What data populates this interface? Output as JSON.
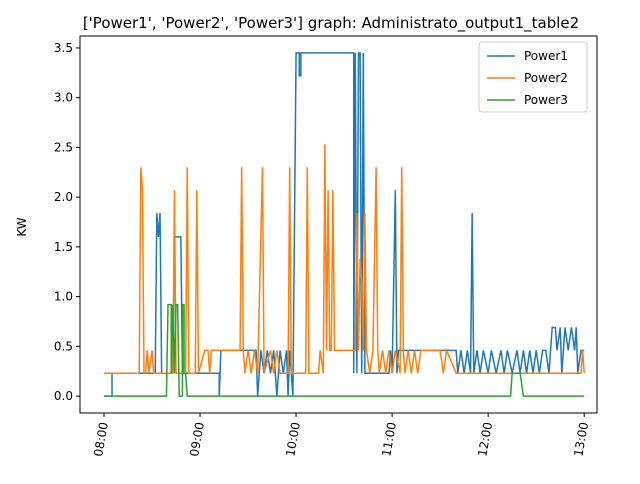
{
  "chart_data": {
    "type": "line",
    "title": "['Power1', 'Power2', 'Power3'] graph: Administrato_output1_table2",
    "xlabel": "",
    "ylabel": "KW",
    "xlim": [
      "07:45",
      "13:08"
    ],
    "ylim": [
      -0.17,
      3.62
    ],
    "x_ticks": [
      "08:00",
      "09:00",
      "10:00",
      "11:00",
      "12:00",
      "13:00"
    ],
    "y_ticks": [
      "0.0",
      "0.5",
      "1.0",
      "1.5",
      "2.0",
      "2.5",
      "3.0",
      "3.5"
    ],
    "grid": false,
    "legend_position": "top-right",
    "series": [
      {
        "name": "Power1",
        "color": "#1f77b4",
        "points": [
          [
            "08:00",
            0.0
          ],
          [
            "08:05",
            0.0
          ],
          [
            "08:05",
            0.23
          ],
          [
            "08:32",
            0.23
          ],
          [
            "08:33",
            1.84
          ],
          [
            "08:34",
            1.6
          ],
          [
            "08:35",
            1.84
          ],
          [
            "08:36",
            0.23
          ],
          [
            "08:43",
            0.23
          ],
          [
            "08:44",
            1.6
          ],
          [
            "08:48",
            1.6
          ],
          [
            "08:49",
            0.23
          ],
          [
            "09:12",
            0.23
          ],
          [
            "09:12",
            0.0
          ],
          [
            "09:13",
            0.46
          ],
          [
            "09:35",
            0.46
          ],
          [
            "09:36",
            0.0
          ],
          [
            "09:38",
            0.46
          ],
          [
            "09:40",
            0.23
          ],
          [
            "09:42",
            0.46
          ],
          [
            "09:44",
            0.23
          ],
          [
            "09:46",
            0.46
          ],
          [
            "09:48",
            0.0
          ],
          [
            "09:50",
            0.46
          ],
          [
            "09:52",
            0.23
          ],
          [
            "09:54",
            0.46
          ],
          [
            "09:55",
            0.0
          ],
          [
            "09:56",
            0.46
          ],
          [
            "09:58",
            0.0
          ],
          [
            "10:00",
            3.45
          ],
          [
            "10:02",
            3.45
          ],
          [
            "10:02",
            3.22
          ],
          [
            "10:03",
            3.22
          ],
          [
            "10:03",
            3.45
          ],
          [
            "10:36",
            3.45
          ],
          [
            "10:36",
            0.23
          ],
          [
            "10:37",
            3.45
          ],
          [
            "10:38",
            0.23
          ],
          [
            "10:39",
            3.45
          ],
          [
            "10:40",
            3.45
          ],
          [
            "10:41",
            0.23
          ],
          [
            "10:42",
            3.45
          ],
          [
            "10:43",
            0.23
          ],
          [
            "10:58",
            0.23
          ],
          [
            "10:59",
            0.46
          ],
          [
            "11:00",
            0.23
          ],
          [
            "11:02",
            2.07
          ],
          [
            "11:03",
            0.23
          ],
          [
            "11:04",
            0.46
          ],
          [
            "11:40",
            0.46
          ],
          [
            "11:41",
            0.23
          ],
          [
            "11:43",
            0.46
          ],
          [
            "11:45",
            0.23
          ],
          [
            "11:47",
            0.46
          ],
          [
            "11:49",
            0.23
          ],
          [
            "11:50",
            1.84
          ],
          [
            "11:51",
            0.23
          ],
          [
            "11:53",
            0.46
          ],
          [
            "11:55",
            0.23
          ],
          [
            "11:57",
            0.46
          ],
          [
            "12:00",
            0.23
          ],
          [
            "12:02",
            0.46
          ],
          [
            "12:05",
            0.23
          ],
          [
            "12:08",
            0.46
          ],
          [
            "12:10",
            0.23
          ],
          [
            "12:12",
            0.46
          ],
          [
            "12:15",
            0.23
          ],
          [
            "12:18",
            0.46
          ],
          [
            "12:20",
            0.23
          ],
          [
            "12:22",
            0.46
          ],
          [
            "12:24",
            0.23
          ],
          [
            "12:26",
            0.46
          ],
          [
            "12:28",
            0.23
          ],
          [
            "12:30",
            0.46
          ],
          [
            "12:32",
            0.23
          ],
          [
            "12:34",
            0.46
          ],
          [
            "12:36",
            0.46
          ],
          [
            "12:38",
            0.23
          ],
          [
            "12:40",
            0.69
          ],
          [
            "12:42",
            0.69
          ],
          [
            "12:43",
            0.46
          ],
          [
            "12:45",
            0.69
          ],
          [
            "12:46",
            0.23
          ],
          [
            "12:48",
            0.69
          ],
          [
            "12:50",
            0.46
          ],
          [
            "12:52",
            0.69
          ],
          [
            "12:54",
            0.46
          ],
          [
            "12:55",
            0.69
          ],
          [
            "12:56",
            0.23
          ],
          [
            "12:58",
            0.46
          ],
          [
            "13:00",
            0.46
          ]
        ]
      },
      {
        "name": "Power2",
        "color": "#ff7f0e",
        "points": [
          [
            "08:00",
            0.23
          ],
          [
            "08:22",
            0.23
          ],
          [
            "08:23",
            2.3
          ],
          [
            "08:24",
            2.07
          ],
          [
            "08:25",
            0.23
          ],
          [
            "08:26",
            0.23
          ],
          [
            "08:27",
            0.46
          ],
          [
            "08:28",
            0.23
          ],
          [
            "08:30",
            0.46
          ],
          [
            "08:31",
            0.23
          ],
          [
            "08:43",
            0.23
          ],
          [
            "08:44",
            2.07
          ],
          [
            "08:45",
            0.23
          ],
          [
            "08:51",
            0.23
          ],
          [
            "08:52",
            2.3
          ],
          [
            "08:53",
            0.23
          ],
          [
            "08:57",
            0.23
          ],
          [
            "08:58",
            2.07
          ],
          [
            "08:59",
            0.23
          ],
          [
            "09:03",
            0.46
          ],
          [
            "09:05",
            0.46
          ],
          [
            "09:06",
            0.23
          ],
          [
            "09:07",
            0.46
          ],
          [
            "09:25",
            0.46
          ],
          [
            "09:26",
            2.3
          ],
          [
            "09:27",
            0.46
          ],
          [
            "09:28",
            0.23
          ],
          [
            "09:30",
            0.46
          ],
          [
            "09:32",
            0.23
          ],
          [
            "09:34",
            0.46
          ],
          [
            "09:36",
            0.23
          ],
          [
            "09:39",
            2.3
          ],
          [
            "09:40",
            0.23
          ],
          [
            "09:44",
            0.46
          ],
          [
            "09:46",
            0.23
          ],
          [
            "09:48",
            0.46
          ],
          [
            "09:50",
            0.23
          ],
          [
            "09:55",
            0.23
          ],
          [
            "09:56",
            2.3
          ],
          [
            "09:57",
            0.23
          ],
          [
            "10:06",
            0.23
          ],
          [
            "10:07",
            2.3
          ],
          [
            "10:08",
            0.23
          ],
          [
            "10:14",
            0.23
          ],
          [
            "10:15",
            0.46
          ],
          [
            "10:17",
            0.23
          ],
          [
            "10:18",
            2.53
          ],
          [
            "10:19",
            0.46
          ],
          [
            "10:20",
            2.07
          ],
          [
            "10:21",
            0.46
          ],
          [
            "10:22",
            0.46
          ],
          [
            "10:23",
            2.07
          ],
          [
            "10:24",
            0.46
          ],
          [
            "10:37",
            0.46
          ],
          [
            "10:38",
            1.84
          ],
          [
            "10:39",
            0.46
          ],
          [
            "10:40",
            1.38
          ],
          [
            "10:41",
            1.15
          ],
          [
            "10:42",
            0.46
          ],
          [
            "10:43",
            1.84
          ],
          [
            "10:44",
            0.46
          ],
          [
            "10:46",
            0.23
          ],
          [
            "10:48",
            0.46
          ],
          [
            "10:50",
            2.3
          ],
          [
            "10:51",
            0.46
          ],
          [
            "10:52",
            0.23
          ],
          [
            "10:54",
            0.46
          ],
          [
            "10:56",
            0.23
          ],
          [
            "10:58",
            0.46
          ],
          [
            "11:00",
            0.23
          ],
          [
            "11:02",
            0.46
          ],
          [
            "11:05",
            0.23
          ],
          [
            "11:06",
            2.3
          ],
          [
            "11:07",
            0.46
          ],
          [
            "11:08",
            0.23
          ],
          [
            "11:10",
            0.46
          ],
          [
            "11:12",
            0.23
          ],
          [
            "11:14",
            0.46
          ],
          [
            "11:16",
            0.23
          ],
          [
            "11:18",
            0.46
          ],
          [
            "11:30",
            0.46
          ],
          [
            "11:32",
            0.23
          ],
          [
            "11:34",
            0.46
          ],
          [
            "11:40",
            0.23
          ],
          [
            "12:58",
            0.23
          ],
          [
            "12:59",
            0.46
          ],
          [
            "13:00",
            0.23
          ]
        ]
      },
      {
        "name": "Power3",
        "color": "#2ca02c",
        "points": [
          [
            "08:00",
            0.0
          ],
          [
            "08:39",
            0.0
          ],
          [
            "08:40",
            0.92
          ],
          [
            "08:42",
            0.92
          ],
          [
            "08:42",
            0.23
          ],
          [
            "08:43",
            0.92
          ],
          [
            "08:44",
            0.23
          ],
          [
            "08:45",
            0.92
          ],
          [
            "08:46",
            0.92
          ],
          [
            "08:47",
            0.0
          ],
          [
            "08:49",
            0.0
          ],
          [
            "08:49",
            0.92
          ],
          [
            "08:50",
            0.92
          ],
          [
            "08:50",
            0.23
          ],
          [
            "08:51",
            0.23
          ],
          [
            "08:52",
            0.0
          ],
          [
            "12:14",
            0.0
          ],
          [
            "12:15",
            0.23
          ],
          [
            "12:20",
            0.23
          ],
          [
            "12:22",
            0.0
          ],
          [
            "13:00",
            0.0
          ]
        ]
      }
    ]
  }
}
